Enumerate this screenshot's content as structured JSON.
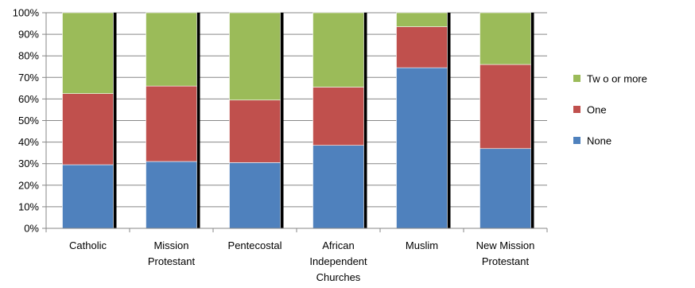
{
  "chart_data": {
    "type": "bar",
    "stacked": "percent",
    "categories": [
      [
        "Catholic"
      ],
      [
        "Mission",
        "Protestant"
      ],
      [
        "Pentecostal"
      ],
      [
        "African",
        "Independent",
        "Churches"
      ],
      [
        "Muslim"
      ],
      [
        "New Mission",
        "Protestant"
      ]
    ],
    "series": [
      {
        "name": "None",
        "color": "#4F81BD",
        "values": [
          29.5,
          31,
          30.5,
          38.5,
          74.5,
          37
        ]
      },
      {
        "name": "One",
        "color": "#C0504D",
        "values": [
          33,
          35,
          29,
          27,
          19,
          39
        ]
      },
      {
        "name": "Tw o or more",
        "color": "#9BBB59",
        "values": [
          37.5,
          34,
          40.5,
          34.5,
          6.5,
          24
        ]
      }
    ],
    "yticks": [
      "0%",
      "10%",
      "20%",
      "30%",
      "40%",
      "50%",
      "60%",
      "70%",
      "80%",
      "90%",
      "100%"
    ],
    "ylim": [
      0,
      100
    ],
    "grid": true,
    "legend": "right",
    "legend_order": [
      "Tw o or more",
      "One",
      "None"
    ]
  }
}
